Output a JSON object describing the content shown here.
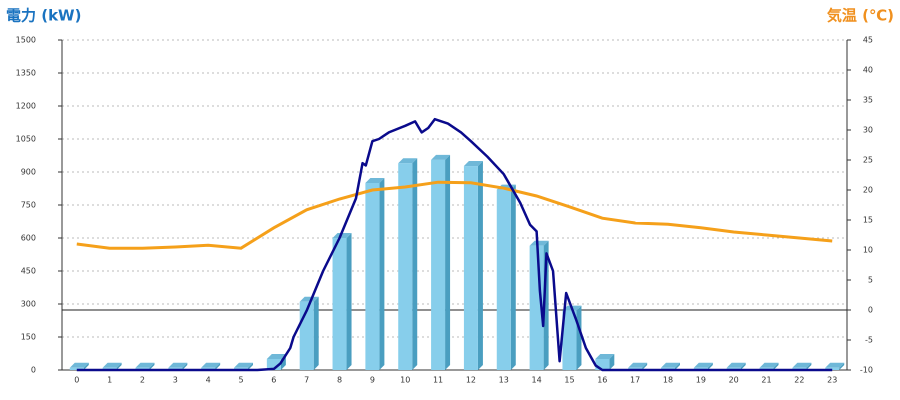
{
  "chart_data": {
    "type": "combo",
    "ylabel": "電力 (kW)",
    "y2label": "気温 (℃)",
    "categories": [
      "0",
      "1",
      "2",
      "3",
      "4",
      "5",
      "6",
      "7",
      "8",
      "9",
      "10",
      "11",
      "12",
      "13",
      "14",
      "15",
      "16",
      "17",
      "18",
      "19",
      "20",
      "21",
      "22",
      "23"
    ],
    "xlim": [
      -0.45,
      23.45
    ],
    "ylim": [
      0,
      1500
    ],
    "yticks": [
      0,
      150,
      300,
      450,
      600,
      750,
      900,
      1050,
      1200,
      1350,
      1500
    ],
    "y2lim": [
      -10,
      45
    ],
    "y2ticks": [
      -10,
      -5,
      0,
      5,
      10,
      15,
      20,
      25,
      30,
      35,
      40,
      45
    ],
    "grid": true,
    "bars": {
      "color": "#87ceeb",
      "values": [
        10,
        10,
        10,
        10,
        10,
        10,
        50,
        310,
        600,
        850,
        940,
        955,
        927,
        820,
        565,
        270,
        50,
        10,
        10,
        10,
        10,
        10,
        10,
        10
      ]
    },
    "temp_line": {
      "color": "#f5a01a",
      "axis": "y2",
      "values": [
        11,
        10.3,
        10.3,
        10.5,
        10.8,
        10.3,
        13.7,
        16.7,
        18.5,
        20,
        20.5,
        21.3,
        21.2,
        20.3,
        19,
        17.2,
        15.3,
        14.5,
        14.3,
        13.7,
        13,
        12.5,
        12,
        11.5
      ]
    },
    "power_line": {
      "color": "#0a0a8c",
      "x": [
        0,
        5.5,
        6,
        6.2,
        6.5,
        6.6,
        7,
        7.5,
        8,
        8.5,
        8.7,
        8.8,
        9,
        9.2,
        9.5,
        10,
        10.3,
        10.5,
        10.7,
        10.9,
        11.3,
        11.7,
        12,
        12.5,
        13,
        13.5,
        13.8,
        14,
        14.1,
        14.2,
        14.3,
        14.5,
        14.7,
        14.9,
        15.2,
        15.5,
        15.8,
        16,
        23
      ],
      "values": [
        0,
        0,
        5,
        30,
        100,
        150,
        270,
        450,
        600,
        780,
        940,
        930,
        1040,
        1050,
        1080,
        1110,
        1130,
        1080,
        1100,
        1140,
        1120,
        1080,
        1040,
        970,
        890,
        760,
        660,
        630,
        360,
        200,
        530,
        450,
        40,
        350,
        230,
        100,
        20,
        0,
        0
      ]
    }
  }
}
